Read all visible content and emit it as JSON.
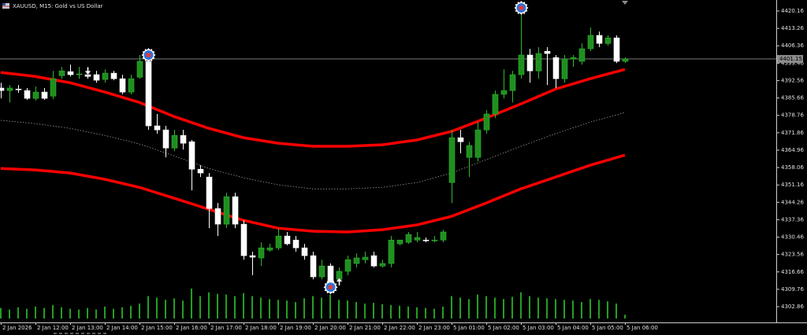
{
  "chart_data": {
    "type": "candlestick",
    "title": "XAUUSD, M15:  Gold vs US Dollar",
    "categories": [
      "2 Jan 2026",
      null,
      null,
      null,
      "2 Jan 12:00",
      null,
      null,
      null,
      "2 Jan 13:00",
      null,
      null,
      null,
      "2 Jan 14:00",
      null,
      null,
      null,
      "2 Jan 15:00",
      null,
      null,
      null,
      "2 Jan 16:00",
      null,
      null,
      null,
      "2 Jan 17:00",
      null,
      null,
      null,
      "2 Jan 18:00",
      null,
      null,
      null,
      "2 Jan 19:00",
      null,
      null,
      null,
      "2 Jan 20:00",
      null,
      null,
      null,
      "2 Jan 21:00",
      null,
      null,
      null,
      "2 Jan 22:00",
      null,
      null,
      null,
      "2 Jan 23:00",
      null,
      null,
      null,
      "5 Jan 01:00",
      null,
      null,
      null,
      "5 Jan 02:00",
      null,
      null,
      null,
      "5 Jan 03:00",
      null,
      null,
      null,
      "5 Jan 04:00",
      null,
      null,
      null,
      "5 Jan 05:00",
      null,
      null,
      null,
      "5 Jan 06:00"
    ],
    "open": [
      4389.6,
      4388.6,
      4389.2,
      4388.6,
      4385.5,
      4388.0,
      4386.4,
      4394.5,
      4396.1,
      4394.9,
      4394.9,
      4394.9,
      4393.0,
      4395.5,
      4393.3,
      4388.0,
      4393.9,
      4400.2,
      4374.6,
      4373.0,
      4365.8,
      4370.8,
      4368.3,
      4357.4,
      4354.3,
      4341.8,
      4335.6,
      4346.5,
      4335.6,
      4323.1,
      4322.2,
      4325.3,
      4326.2,
      4330.9,
      4329.3,
      4326.2,
      4323.1,
      4314.7,
      4319.0,
      4313.7,
      4316.9,
      4320.0,
      4321.5,
      4323.1,
      4319.0,
      4320.0,
      4327.8,
      4328.4,
      4329.3,
      4329.3,
      4329.0,
      4329.3,
      4352.1,
      4369.9,
      4362.1,
      4362.1,
      4373.0,
      4379.3,
      4387.1,
      4388.6,
      4394.9,
      4402.7,
      4396.4,
      4404.2,
      4401.7,
      4393.3,
      4401.1,
      4400.2,
      4405.2,
      4410.5,
      4407.3,
      4409.5,
      4400.2
    ],
    "high": [
      4391.7,
      4390.8,
      4390.8,
      4389.6,
      4390.2,
      4389.6,
      4396.4,
      4398.0,
      4398.9,
      4398.0,
      4397.0,
      4396.4,
      4397.0,
      4396.4,
      4394.9,
      4394.9,
      4402.7,
      4403.3,
      4379.3,
      4374.6,
      4373.0,
      4373.0,
      4369.0,
      4359.0,
      4355.9,
      4344.0,
      4348.1,
      4348.1,
      4337.1,
      4324.7,
      4328.4,
      4327.8,
      4334.0,
      4332.5,
      4330.9,
      4327.8,
      4324.7,
      4321.5,
      4320.0,
      4318.4,
      4323.1,
      4324.0,
      4324.7,
      4324.7,
      4321.5,
      4330.9,
      4329.3,
      4332.5,
      4332.5,
      4330.3,
      4330.9,
      4333.4,
      4373.0,
      4373.0,
      4368.3,
      4376.1,
      4380.8,
      4388.6,
      4397.0,
      4396.4,
      4421.4,
      4405.2,
      4405.8,
      4405.8,
      4402.7,
      4402.7,
      4402.7,
      4407.3,
      4413.6,
      4412.0,
      4410.5,
      4410.5,
      4401.7
    ],
    "low": [
      4385.5,
      4383.9,
      4387.7,
      4384.9,
      4384.6,
      4384.9,
      4385.2,
      4393.3,
      4394.2,
      4393.3,
      4393.3,
      4391.7,
      4391.7,
      4392.7,
      4387.1,
      4387.1,
      4393.3,
      4373.0,
      4371.5,
      4362.1,
      4364.6,
      4365.2,
      4349.0,
      4354.3,
      4334.0,
      4330.9,
      4334.0,
      4334.0,
      4321.5,
      4315.3,
      4319.0,
      4324.7,
      4325.3,
      4327.2,
      4324.7,
      4321.5,
      4313.7,
      4313.7,
      4310.6,
      4312.8,
      4315.3,
      4318.4,
      4320.0,
      4318.4,
      4318.4,
      4318.4,
      4327.2,
      4327.8,
      4328.4,
      4328.4,
      4328.4,
      4328.4,
      4344.0,
      4363.7,
      4354.3,
      4360.5,
      4371.5,
      4377.7,
      4385.5,
      4383.9,
      4393.3,
      4391.7,
      4393.3,
      4390.8,
      4389.6,
      4391.7,
      4398.0,
      4398.9,
      4404.2,
      4405.8,
      4406.4,
      4399.5,
      4399.5
    ],
    "close": [
      4388.6,
      4389.6,
      4388.9,
      4385.5,
      4388.0,
      4385.5,
      4393.3,
      4396.4,
      4394.9,
      4395.2,
      4394.2,
      4392.7,
      4395.5,
      4393.3,
      4388.0,
      4393.3,
      4400.2,
      4374.6,
      4373.0,
      4365.8,
      4370.8,
      4367.7,
      4357.4,
      4355.9,
      4341.8,
      4335.6,
      4346.5,
      4335.6,
      4323.1,
      4322.5,
      4326.2,
      4326.2,
      4330.9,
      4327.8,
      4326.2,
      4323.1,
      4314.7,
      4319.0,
      4312.2,
      4316.9,
      4321.5,
      4322.2,
      4322.5,
      4319.0,
      4320.0,
      4329.3,
      4329.3,
      4331.5,
      4330.3,
      4329.0,
      4329.3,
      4332.5,
      4369.9,
      4368.3,
      4366.8,
      4373.0,
      4379.3,
      4387.1,
      4388.6,
      4394.9,
      4402.7,
      4396.4,
      4403.3,
      4403.3,
      4393.3,
      4401.1,
      4401.7,
      4405.2,
      4410.5,
      4407.3,
      4409.5,
      4400.2,
      4401.1
    ],
    "volume": [
      14,
      12,
      15,
      13,
      16,
      14,
      18,
      15,
      13,
      12,
      14,
      12,
      16,
      13,
      15,
      17,
      20,
      30,
      28,
      25,
      27,
      24,
      40,
      30,
      35,
      33,
      32,
      30,
      34,
      30,
      28,
      26,
      25,
      24,
      22,
      27,
      30,
      28,
      32,
      25,
      24,
      22,
      20,
      21,
      19,
      18,
      17,
      16,
      15,
      14,
      13,
      16,
      30,
      28,
      26,
      32,
      30,
      28,
      26,
      29,
      35,
      30,
      28,
      27,
      26,
      25,
      24,
      22,
      26,
      25,
      23,
      20,
      5
    ],
    "up_color": "#1f8f1f",
    "down_color": "#ffffff",
    "volume_color": "#22a022",
    "overlays": [
      {
        "color": "#ff0000",
        "style": "solid",
        "x": [
          0,
          4,
          8,
          12,
          16,
          20,
          24,
          28,
          32,
          36,
          40,
          44,
          48,
          52,
          56,
          60,
          64,
          68,
          72
        ],
        "values": [
          4395.8,
          4394.2,
          4391.7,
          4388.0,
          4383.9,
          4378.3,
          4373.6,
          4369.9,
          4367.7,
          4366.5,
          4366.5,
          4367.1,
          4369.0,
          4372.4,
          4377.7,
          4383.3,
          4389.2,
          4393.3,
          4397.0
        ]
      },
      {
        "color": "#9a9a9a",
        "style": "dotted",
        "x": [
          0,
          4,
          8,
          12,
          16,
          20,
          24,
          28,
          32,
          36,
          40,
          44,
          48,
          52,
          56,
          60,
          64,
          68,
          72
        ],
        "values": [
          4376.8,
          4375.5,
          4373.6,
          4370.8,
          4367.4,
          4362.7,
          4357.7,
          4354.0,
          4351.2,
          4349.6,
          4349.6,
          4350.2,
          4352.1,
          4355.9,
          4361.2,
          4366.5,
          4371.5,
          4376.1,
          4379.9
        ]
      },
      {
        "color": "#ff0000",
        "style": "solid",
        "x": [
          0,
          4,
          8,
          12,
          16,
          20,
          24,
          28,
          32,
          36,
          40,
          44,
          48,
          52,
          56,
          60,
          64,
          68,
          72
        ],
        "values": [
          4357.7,
          4357.1,
          4355.9,
          4353.4,
          4350.2,
          4345.9,
          4341.5,
          4337.1,
          4334.0,
          4332.8,
          4332.5,
          4333.4,
          4335.3,
          4338.7,
          4344.0,
          4349.6,
          4354.3,
          4359.0,
          4363.0
        ]
      }
    ],
    "markers": [
      {
        "x": 17,
        "y": 4402.7,
        "shape": "circle"
      },
      {
        "x": 60,
        "y": 4421.4,
        "shape": "circle"
      },
      {
        "x": 38,
        "y": 4310.6,
        "shape": "circle"
      },
      {
        "x": 10,
        "y": 4396.4,
        "shape": "arrow-down"
      },
      {
        "x": 39,
        "y": 4312.8,
        "shape": "arrow-up"
      }
    ],
    "current_price": 4401.15,
    "ylim": [
      4296.62,
      4424.53
    ],
    "yticks": [
      4420.16,
      4413.26,
      4406.36,
      4399.46,
      4392.56,
      4385.66,
      4378.76,
      4371.86,
      4364.96,
      4358.06,
      4351.16,
      4344.26,
      4337.36,
      4330.46,
      4323.56,
      4316.66,
      4309.76,
      4302.86
    ]
  }
}
